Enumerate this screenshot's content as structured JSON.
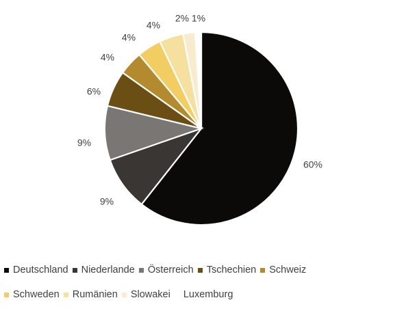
{
  "chart_data": {
    "type": "pie",
    "title": "",
    "categories": [
      "Deutschland",
      "Niederlande",
      "Österreich",
      "Tschechien",
      "Schweiz",
      "Schweden",
      "Rumänien",
      "Slowakei",
      "Luxemburg"
    ],
    "values": [
      60,
      9,
      9,
      6,
      4,
      4,
      4,
      2,
      1
    ],
    "data_labels": [
      "60%",
      "9%",
      "9%",
      "6%",
      "4%",
      "4%",
      "4%",
      "2%",
      "1%"
    ],
    "colors": [
      "#0c0a09",
      "#3a3634",
      "#7a7674",
      "#6b4e14",
      "#b48a2e",
      "#f1cd62",
      "#f6e0a0",
      "#f9eccc",
      "#ffffff"
    ],
    "start_angle": "12 o'clock",
    "direction": "clockwise",
    "legend_position": "bottom",
    "legend": {
      "rows": [
        [
          "Deutschland",
          "Niederlande",
          "Österreich",
          "Tschechien",
          "Schweiz"
        ],
        [
          "Schweden",
          "Rumänien",
          "Slowakei",
          "Luxemburg"
        ]
      ]
    }
  }
}
